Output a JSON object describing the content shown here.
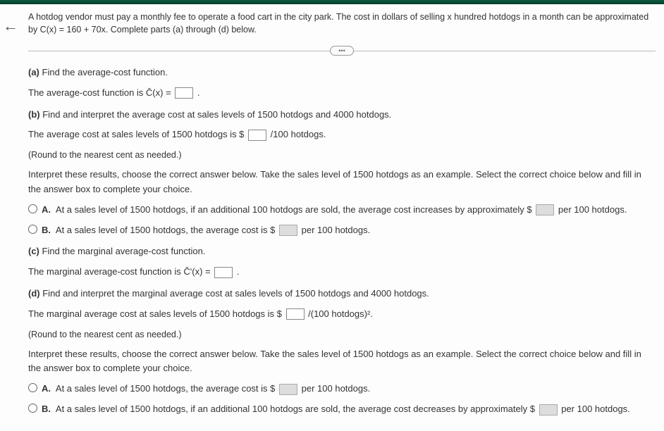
{
  "intro": "A hotdog vendor must pay a monthly fee to operate a food cart in the city park. The cost in dollars of selling x hundred hotdogs in a month can be approximated by C(x) = 160 + 70x. Complete parts (a) through (d) below.",
  "pill": "•••",
  "a": {
    "label": "(a)",
    "prompt": "Find the average-cost function.",
    "line_pre": "The average-cost function is ",
    "func": "C̄(x) = ",
    "line_post": "."
  },
  "b": {
    "label": "(b)",
    "prompt": "Find and interpret the average cost at sales levels of 1500 hotdogs and 4000 hotdogs.",
    "line_pre": "The average cost at sales levels of 1500 hotdogs is $",
    "line_post": "/100 hotdogs.",
    "round": "(Round to the nearest cent as needed.)",
    "interpret": "Interpret these results, choose the correct answer below. Take the sales level of 1500 hotdogs as an example. Select the correct choice below and fill in the answer box to complete your choice.",
    "choices": {
      "A": {
        "label": "A.",
        "pre": "At a sales level of 1500 hotdogs, if an additional 100 hotdogs are sold, the average cost increases by approximately $",
        "post": " per 100 hotdogs."
      },
      "B": {
        "label": "B.",
        "pre": "At a sales level of 1500 hotdogs, the average cost is $",
        "post": " per 100 hotdogs."
      }
    }
  },
  "c": {
    "label": "(c)",
    "prompt": "Find the marginal average-cost function.",
    "line_pre": "The marginal average-cost function is ",
    "func": "C̄ʹ(x) = ",
    "line_post": "."
  },
  "d": {
    "label": "(d)",
    "prompt": "Find and interpret the marginal average cost at sales levels of 1500 hotdogs and 4000 hotdogs.",
    "line_pre": "The marginal average cost at sales levels of 1500 hotdogs is $",
    "line_post": "/(100 hotdogs)².",
    "round": "(Round to the nearest cent as needed.)",
    "interpret": "Interpret these results, choose the correct answer below. Take the sales level of 1500 hotdogs as an example. Select the correct choice below and fill in the answer box to complete your choice.",
    "choices": {
      "A": {
        "label": "A.",
        "pre": "At a sales level of 1500 hotdogs, the average cost is $",
        "post": " per 100 hotdogs."
      },
      "B": {
        "label": "B.",
        "pre": "At a sales level of 1500 hotdogs, if an additional 100 hotdogs are sold, the average cost decreases by approximately $",
        "post": " per 100 hotdogs."
      }
    }
  },
  "back": "←"
}
